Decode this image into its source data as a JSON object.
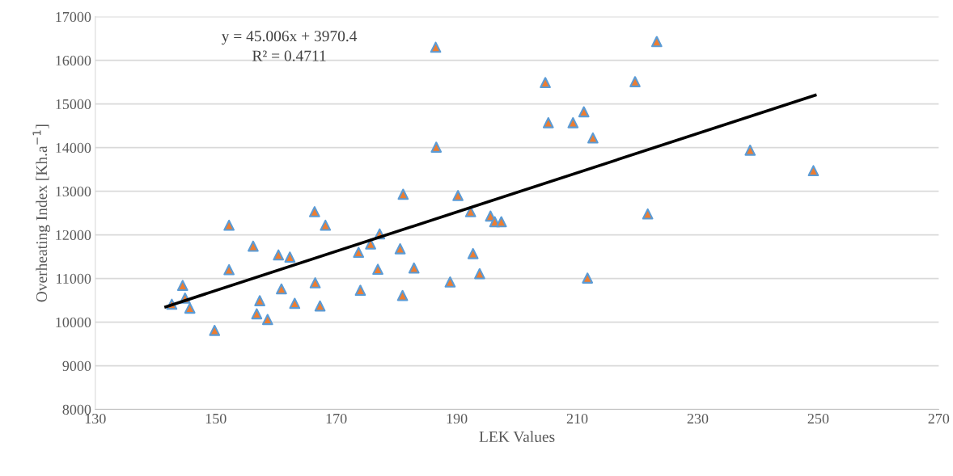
{
  "chart_data": {
    "type": "scatter",
    "xlabel": "LEK Values",
    "ylabel": "Overheating Index [Kh.a$^{−1}$]",
    "xlim": [
      130,
      270
    ],
    "xticks": [
      130,
      150,
      170,
      190,
      210,
      230,
      250,
      270
    ],
    "ylim": [
      8000,
      17000
    ],
    "yticks": [
      8000,
      9000,
      10000,
      11000,
      12000,
      13000,
      14000,
      15000,
      16000,
      17000
    ],
    "grid": "y",
    "legend": false,
    "marker": "triangle",
    "series": [
      {
        "color": "#ed7d31",
        "x": [
          142.7,
          144.5,
          144.9,
          145.7,
          149.8,
          152.2,
          152.2,
          156.2,
          157.3,
          156.8,
          158.6,
          160.4,
          162.3,
          160.9,
          163.1,
          166.4,
          168.2,
          166.5,
          167.3,
          173.7,
          175.7,
          177.2,
          176.9,
          174.0,
          180.6,
          182.9,
          181.0,
          186.6,
          181.1,
          190.2,
          192.3,
          195.6,
          196.3,
          197.4,
          192.7,
          193.8,
          188.9,
          186.5,
          223.2,
          204.7,
          219.6,
          205.2,
          209.3,
          211.1,
          212.6,
          238.7,
          249.2,
          221.7,
          211.7
        ],
        "values": [
          10410,
          10840,
          10550,
          10320,
          9810,
          12220,
          11200,
          11740,
          10490,
          10190,
          10060,
          11540,
          11490,
          10760,
          10430,
          12530,
          12220,
          10900,
          10370,
          11600,
          11790,
          12020,
          11210,
          10730,
          11680,
          11240,
          10610,
          14010,
          12930,
          12900,
          12530,
          12430,
          12300,
          12300,
          11570,
          11110,
          10920,
          16300,
          16430,
          15490,
          15510,
          14570,
          14570,
          14820,
          14220,
          13940,
          13470,
          12480,
          11010
        ]
      },
      {
        "type": "line",
        "color": "#000000",
        "marker": "none",
        "x": [
          141.7,
          249.5
        ],
        "values": [
          10350,
          15200
        ]
      }
    ],
    "annotations": [
      "y = 45.006x + 3970.4",
      "R² = 0.4711"
    ]
  }
}
